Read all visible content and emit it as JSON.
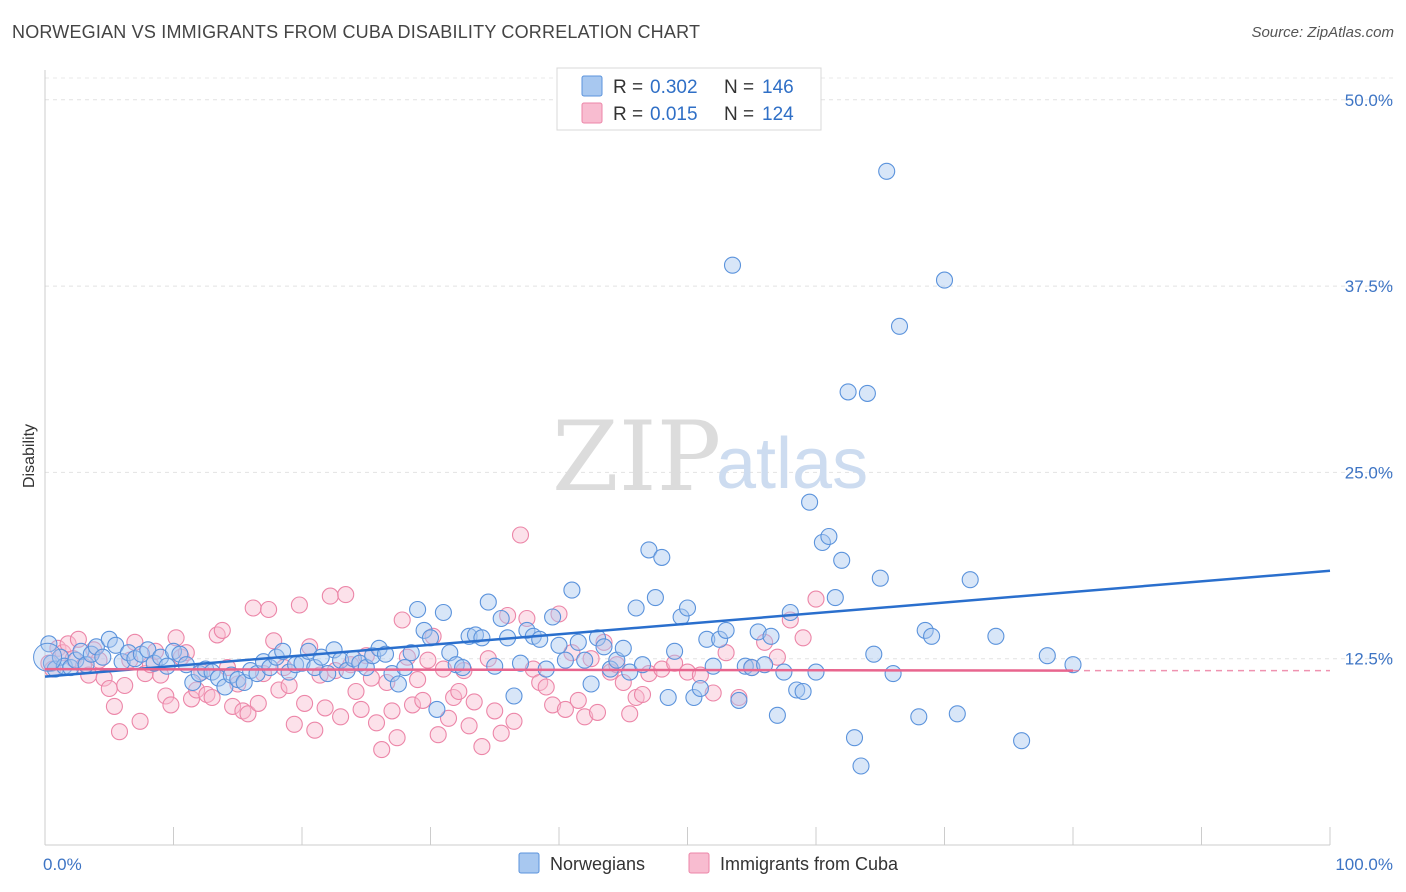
{
  "header": {
    "title": "NORWEGIAN VS IMMIGRANTS FROM CUBA DISABILITY CORRELATION CHART",
    "source": "Source: ZipAtlas.com"
  },
  "watermark": {
    "zip": "ZIP",
    "atlas": "atlas"
  },
  "legend": {
    "r_label": "R =",
    "n_label": "N =",
    "rows": [
      {
        "r": "0.302",
        "n": "146",
        "color": "#6fa3e8"
      },
      {
        "r": "0.015",
        "n": "124",
        "color": "#f29ab8"
      }
    ]
  },
  "colors": {
    "blue_fill": "#a8c8f0",
    "blue_stroke": "#5b93dc",
    "blue_line": "#2a6fcd",
    "pink_fill": "#f8bcd0",
    "pink_stroke": "#ec86a8",
    "pink_line": "#e8658e"
  },
  "chart_data": {
    "type": "scatter",
    "title": "NORWEGIAN VS IMMIGRANTS FROM CUBA DISABILITY CORRELATION CHART",
    "xlabel": "",
    "ylabel": "Disability",
    "xlim": [
      0,
      100
    ],
    "ylim": [
      0,
      52
    ],
    "x_tick_labels": [
      "0.0%",
      "100.0%"
    ],
    "y_ticks": [
      12.5,
      25.0,
      37.5,
      50.0
    ],
    "y_tick_labels": [
      "12.5%",
      "25.0%",
      "37.5%",
      "50.0%"
    ],
    "grid": "horizontal dashed",
    "legend_position": "top-center",
    "series": [
      {
        "name": "Norwegians",
        "r": 0.302,
        "n": 146,
        "trend": {
          "x": [
            0,
            100
          ],
          "y": [
            11.3,
            18.4
          ]
        },
        "points": [
          [
            0.3,
            13.5
          ],
          [
            0.5,
            12.2
          ],
          [
            0.8,
            11.8
          ],
          [
            1.2,
            12.6
          ],
          [
            1.5,
            12.0
          ],
          [
            2.0,
            11.9
          ],
          [
            2.4,
            12.4
          ],
          [
            2.8,
            13.0
          ],
          [
            3.2,
            12.1
          ],
          [
            3.6,
            12.8
          ],
          [
            4.0,
            13.3
          ],
          [
            4.5,
            12.6
          ],
          [
            5.0,
            13.8
          ],
          [
            5.5,
            13.4
          ],
          [
            6.0,
            12.3
          ],
          [
            6.5,
            12.9
          ],
          [
            7.0,
            12.5
          ],
          [
            7.5,
            12.8
          ],
          [
            8.0,
            13.1
          ],
          [
            8.5,
            12.2
          ],
          [
            9.0,
            12.6
          ],
          [
            9.5,
            12.0
          ],
          [
            10.0,
            13.0
          ],
          [
            10.5,
            12.8
          ],
          [
            11.0,
            12.1
          ],
          [
            11.5,
            10.9
          ],
          [
            12.0,
            11.5
          ],
          [
            12.5,
            11.8
          ],
          [
            13.0,
            11.6
          ],
          [
            13.5,
            11.2
          ],
          [
            14.0,
            10.6
          ],
          [
            14.5,
            11.4
          ],
          [
            15.0,
            11.1
          ],
          [
            15.5,
            10.9
          ],
          [
            16.0,
            11.7
          ],
          [
            16.5,
            11.5
          ],
          [
            17.0,
            12.3
          ],
          [
            17.5,
            11.9
          ],
          [
            18.0,
            12.6
          ],
          [
            18.5,
            13.0
          ],
          [
            19.0,
            11.6
          ],
          [
            19.5,
            12.1
          ],
          [
            20.0,
            12.2
          ],
          [
            20.5,
            13.0
          ],
          [
            21.0,
            11.9
          ],
          [
            21.5,
            12.6
          ],
          [
            22.0,
            11.5
          ],
          [
            22.5,
            13.1
          ],
          [
            23.0,
            12.4
          ],
          [
            23.5,
            11.7
          ],
          [
            24.0,
            12.5
          ],
          [
            24.5,
            12.2
          ],
          [
            25.0,
            11.9
          ],
          [
            25.5,
            12.7
          ],
          [
            26.0,
            13.2
          ],
          [
            26.5,
            12.8
          ],
          [
            27.0,
            11.5
          ],
          [
            27.5,
            10.8
          ],
          [
            28.0,
            11.9
          ],
          [
            28.5,
            12.9
          ],
          [
            29.0,
            15.8
          ],
          [
            29.5,
            14.4
          ],
          [
            30.0,
            13.9
          ],
          [
            30.5,
            9.1
          ],
          [
            31.0,
            15.6
          ],
          [
            31.5,
            12.9
          ],
          [
            32.0,
            12.1
          ],
          [
            32.5,
            11.9
          ],
          [
            33.0,
            14.0
          ],
          [
            33.5,
            14.1
          ],
          [
            34.0,
            13.9
          ],
          [
            34.5,
            16.3
          ],
          [
            35.0,
            12.0
          ],
          [
            35.5,
            15.2
          ],
          [
            36.0,
            13.9
          ],
          [
            36.5,
            10.0
          ],
          [
            37.0,
            12.2
          ],
          [
            37.5,
            14.4
          ],
          [
            38.0,
            14.0
          ],
          [
            38.5,
            13.8
          ],
          [
            39.0,
            11.8
          ],
          [
            39.5,
            15.3
          ],
          [
            40.0,
            13.4
          ],
          [
            40.5,
            12.4
          ],
          [
            41.0,
            17.1
          ],
          [
            41.5,
            13.6
          ],
          [
            42.0,
            12.4
          ],
          [
            42.5,
            10.8
          ],
          [
            43.0,
            13.9
          ],
          [
            43.5,
            13.3
          ],
          [
            44.0,
            11.8
          ],
          [
            44.5,
            12.4
          ],
          [
            45.0,
            13.2
          ],
          [
            45.5,
            11.6
          ],
          [
            46.0,
            15.9
          ],
          [
            46.5,
            12.1
          ],
          [
            47.0,
            19.8
          ],
          [
            47.5,
            16.6
          ],
          [
            48.0,
            19.3
          ],
          [
            48.5,
            9.9
          ],
          [
            49.0,
            13.0
          ],
          [
            49.5,
            15.3
          ],
          [
            50.0,
            15.9
          ],
          [
            50.5,
            9.9
          ],
          [
            51.0,
            10.5
          ],
          [
            51.5,
            13.8
          ],
          [
            52.0,
            12.0
          ],
          [
            52.5,
            13.8
          ],
          [
            53.0,
            14.4
          ],
          [
            53.5,
            38.9
          ],
          [
            54.0,
            9.7
          ],
          [
            54.5,
            12.0
          ],
          [
            55.0,
            11.9
          ],
          [
            55.5,
            14.3
          ],
          [
            56.0,
            12.1
          ],
          [
            56.5,
            14.0
          ],
          [
            57.0,
            8.7
          ],
          [
            57.5,
            11.6
          ],
          [
            58.0,
            15.6
          ],
          [
            58.5,
            10.4
          ],
          [
            59.0,
            10.3
          ],
          [
            59.5,
            23.0
          ],
          [
            60.0,
            11.6
          ],
          [
            60.5,
            20.3
          ],
          [
            61.0,
            20.7
          ],
          [
            61.5,
            16.6
          ],
          [
            62.0,
            19.1
          ],
          [
            62.5,
            30.4
          ],
          [
            63.0,
            7.2
          ],
          [
            63.5,
            5.3
          ],
          [
            64.0,
            30.3
          ],
          [
            64.5,
            12.8
          ],
          [
            65.0,
            17.9
          ],
          [
            65.5,
            45.2
          ],
          [
            66.0,
            11.5
          ],
          [
            66.5,
            34.8
          ],
          [
            68.0,
            8.6
          ],
          [
            68.5,
            14.4
          ],
          [
            69.0,
            14.0
          ],
          [
            70.0,
            37.9
          ],
          [
            71.0,
            8.8
          ],
          [
            72.0,
            17.8
          ],
          [
            74.0,
            14.0
          ],
          [
            76.0,
            7.0
          ],
          [
            78.0,
            12.7
          ],
          [
            80.0,
            12.1
          ]
        ]
      },
      {
        "name": "Immigrants from Cuba",
        "r": 0.015,
        "n": 124,
        "trend": {
          "x": [
            0,
            80
          ],
          "y": [
            11.8,
            11.7
          ]
        },
        "trend_dashed": {
          "x": [
            80,
            100
          ],
          "y": [
            11.7,
            11.7
          ]
        },
        "points": [
          [
            0.3,
            12.2
          ],
          [
            0.6,
            11.8
          ],
          [
            1.0,
            13.2
          ],
          [
            1.4,
            12.9
          ],
          [
            1.8,
            13.5
          ],
          [
            2.2,
            12.5
          ],
          [
            2.6,
            13.8
          ],
          [
            3.0,
            12.0
          ],
          [
            3.4,
            11.4
          ],
          [
            3.8,
            13.1
          ],
          [
            4.2,
            12.4
          ],
          [
            4.6,
            11.2
          ],
          [
            5.0,
            10.5
          ],
          [
            5.4,
            9.3
          ],
          [
            5.8,
            7.6
          ],
          [
            6.2,
            10.7
          ],
          [
            6.6,
            12.4
          ],
          [
            7.0,
            13.6
          ],
          [
            7.4,
            8.3
          ],
          [
            7.8,
            11.5
          ],
          [
            8.2,
            12.1
          ],
          [
            8.6,
            13.0
          ],
          [
            9.0,
            11.4
          ],
          [
            9.4,
            10.0
          ],
          [
            9.8,
            9.4
          ],
          [
            10.2,
            13.9
          ],
          [
            10.6,
            12.6
          ],
          [
            11.0,
            12.9
          ],
          [
            11.4,
            9.8
          ],
          [
            11.8,
            10.4
          ],
          [
            12.2,
            11.6
          ],
          [
            12.6,
            10.1
          ],
          [
            13.0,
            9.9
          ],
          [
            13.4,
            14.1
          ],
          [
            13.8,
            14.4
          ],
          [
            14.2,
            11.9
          ],
          [
            14.6,
            9.3
          ],
          [
            15.0,
            10.8
          ],
          [
            15.4,
            9.0
          ],
          [
            15.8,
            8.8
          ],
          [
            16.2,
            15.9
          ],
          [
            16.6,
            9.5
          ],
          [
            17.0,
            11.5
          ],
          [
            17.4,
            15.8
          ],
          [
            17.8,
            13.7
          ],
          [
            18.2,
            10.4
          ],
          [
            18.6,
            11.9
          ],
          [
            19.0,
            10.7
          ],
          [
            19.4,
            8.1
          ],
          [
            19.8,
            16.1
          ],
          [
            20.2,
            9.5
          ],
          [
            20.6,
            13.3
          ],
          [
            21.0,
            7.7
          ],
          [
            21.4,
            11.4
          ],
          [
            21.8,
            9.2
          ],
          [
            22.2,
            16.7
          ],
          [
            22.6,
            11.7
          ],
          [
            23.0,
            8.6
          ],
          [
            23.4,
            16.8
          ],
          [
            23.8,
            12.1
          ],
          [
            24.2,
            10.3
          ],
          [
            24.6,
            9.1
          ],
          [
            25.0,
            12.7
          ],
          [
            25.4,
            11.2
          ],
          [
            25.8,
            8.2
          ],
          [
            26.2,
            6.4
          ],
          [
            26.6,
            10.9
          ],
          [
            27.0,
            9.0
          ],
          [
            27.4,
            7.2
          ],
          [
            27.8,
            15.1
          ],
          [
            28.2,
            12.6
          ],
          [
            28.6,
            9.4
          ],
          [
            29.0,
            11.1
          ],
          [
            29.4,
            9.7
          ],
          [
            29.8,
            12.4
          ],
          [
            30.2,
            14.0
          ],
          [
            30.6,
            7.4
          ],
          [
            31.0,
            11.8
          ],
          [
            31.4,
            8.5
          ],
          [
            31.8,
            9.9
          ],
          [
            32.2,
            10.3
          ],
          [
            32.6,
            11.7
          ],
          [
            33.0,
            8.0
          ],
          [
            33.4,
            9.6
          ],
          [
            34.0,
            6.6
          ],
          [
            34.5,
            12.5
          ],
          [
            35.0,
            9.0
          ],
          [
            35.5,
            7.5
          ],
          [
            36.0,
            15.4
          ],
          [
            36.5,
            8.3
          ],
          [
            37.0,
            20.8
          ],
          [
            37.5,
            15.2
          ],
          [
            38.0,
            11.8
          ],
          [
            38.5,
            10.9
          ],
          [
            39.0,
            10.6
          ],
          [
            39.5,
            9.4
          ],
          [
            40.0,
            15.5
          ],
          [
            40.5,
            9.1
          ],
          [
            41.0,
            12.9
          ],
          [
            41.5,
            9.7
          ],
          [
            42.0,
            8.6
          ],
          [
            42.5,
            12.5
          ],
          [
            43.0,
            8.9
          ],
          [
            43.5,
            13.6
          ],
          [
            44.0,
            11.6
          ],
          [
            44.5,
            12.1
          ],
          [
            45.0,
            10.9
          ],
          [
            45.5,
            8.8
          ],
          [
            46.0,
            9.9
          ],
          [
            46.5,
            10.1
          ],
          [
            47.0,
            11.5
          ],
          [
            48.0,
            11.8
          ],
          [
            49.0,
            12.2
          ],
          [
            50.0,
            11.6
          ],
          [
            51.0,
            11.4
          ],
          [
            52.0,
            10.2
          ],
          [
            53.0,
            12.9
          ],
          [
            54.0,
            9.9
          ],
          [
            55.0,
            11.9
          ],
          [
            56.0,
            13.6
          ],
          [
            57.0,
            12.6
          ],
          [
            58.0,
            15.1
          ],
          [
            59.0,
            13.9
          ],
          [
            60.0,
            16.5
          ]
        ]
      }
    ]
  },
  "bottom_legend": [
    {
      "label": "Norwegians"
    },
    {
      "label": "Immigrants from Cuba"
    }
  ]
}
